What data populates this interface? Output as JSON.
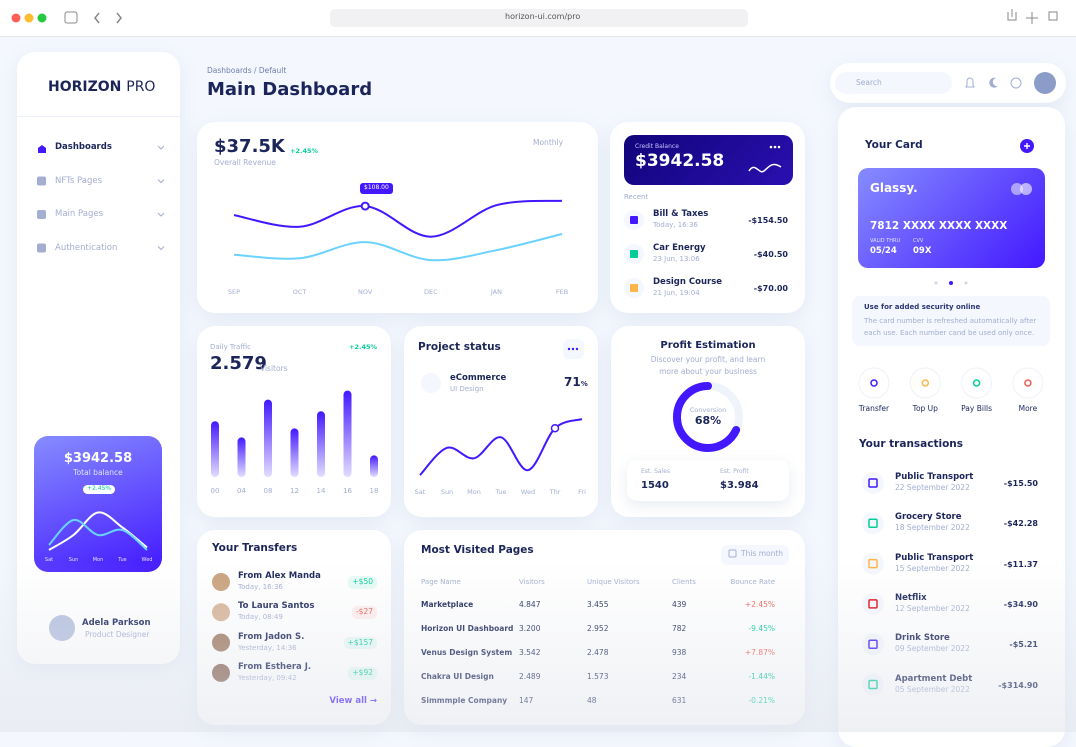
{
  "browser": {
    "url": "horizon-ui.com/pro"
  },
  "sidebar": {
    "brand": "HORIZON",
    "brand_suffix": "PRO",
    "nav": [
      "Dashboards",
      "NFTs Pages",
      "Main Pages",
      "Authentication"
    ],
    "balance_card": {
      "amount": "$3942.58",
      "label": "Total balance",
      "change": "+2.45%",
      "chart": {
        "type": "line",
        "categories": [
          "Sat",
          "Sun",
          "Mon",
          "Tue",
          "Wed"
        ],
        "series": [
          {
            "color": "#ffffff",
            "values": [
              10,
              40,
              85,
              55,
              15
            ]
          },
          {
            "color": "#6ad2ff",
            "values": [
              20,
              70,
              40,
              50,
              10
            ]
          }
        ],
        "ylim": [
          0,
          100
        ]
      }
    },
    "profile": {
      "name": "Adela Parkson",
      "role": "Product Designer"
    }
  },
  "header": {
    "breadcrumb": "Dashboards / Default",
    "title": "Main Dashboard",
    "search": "Search"
  },
  "revenue": {
    "amount": "$37.5K",
    "change": "+2.45%",
    "label": "Overall Revenue",
    "period": "Monthly",
    "tooltip": "$108.00",
    "chart": {
      "type": "line",
      "categories": [
        "SEP",
        "OCT",
        "NOV",
        "DEC",
        "JAN",
        "FEB"
      ],
      "series": [
        {
          "color": "#4318ff",
          "values": [
            61,
            48,
            71,
            37,
            72,
            77
          ]
        },
        {
          "color": "#6ad2ff",
          "values": [
            17,
            13,
            31,
            11,
            22,
            40
          ]
        }
      ],
      "ylim": [
        0,
        100
      ]
    }
  },
  "credit": {
    "label": "Credit Balance",
    "amount": "$3942.58",
    "recent": "Recent",
    "items": [
      {
        "name": "Bill & Taxes",
        "time": "Today, 16:36",
        "amount": "-$154.50"
      },
      {
        "name": "Car Energy",
        "time": "23 Jun, 13:06",
        "amount": "-$40.50"
      },
      {
        "name": "Design Course",
        "time": "21 Jun, 19:04",
        "amount": "-$70.00"
      }
    ]
  },
  "traffic": {
    "label": "Daily Traffic",
    "change": "+2.45%",
    "value": "2.579",
    "unit": "Visitors",
    "chart": {
      "type": "bar",
      "categories": [
        "00",
        "04",
        "08",
        "12",
        "14",
        "16",
        "18"
      ],
      "values": [
        62,
        44,
        86,
        54,
        73,
        96,
        24
      ],
      "ylim": [
        0,
        100
      ],
      "color": "#4318ff"
    }
  },
  "project": {
    "title": "Project status",
    "item": "eCommerce",
    "sub": "UI Design",
    "percent": "71",
    "percent_unit": "%",
    "chart": {
      "type": "line",
      "categories": [
        "Sat",
        "Sun",
        "Mon",
        "Tue",
        "Wed",
        "Thr",
        "Fri"
      ],
      "values": [
        7,
        46,
        31,
        61,
        14,
        74,
        87
      ],
      "ylim": [
        0,
        100
      ],
      "color": "#4318ff"
    }
  },
  "profit": {
    "title": "Profit Estimation",
    "text": "Discover your profit, and learn more about your business",
    "donut_label": "Conversion",
    "donut": {
      "value": 68,
      "label": "68%"
    },
    "sales_label": "Est. Sales",
    "sales": "1540",
    "profit_label": "Est. Profit",
    "profit": "$3.984"
  },
  "transfers": {
    "title": "Your Transfers",
    "items": [
      {
        "name": "From Alex Manda",
        "time": "Today, 16:36",
        "amount": "+$50"
      },
      {
        "name": "To Laura Santos",
        "time": "Today, 08:49",
        "amount": "-$27"
      },
      {
        "name": "From Jadon S.",
        "time": "Yesterday, 14:36",
        "amount": "+$157"
      },
      {
        "name": "From Esthera J.",
        "time": "Yesterday, 09:42",
        "amount": "+$92"
      }
    ],
    "view_all": "View all"
  },
  "pages": {
    "title": "Most Visited Pages",
    "period": "This month",
    "columns": [
      "Page Name",
      "Visitors",
      "Unique Visitors",
      "Clients",
      "Bounce Rate"
    ],
    "rows": [
      [
        "Marketplace",
        "4.847",
        "3.455",
        "439",
        "+2.45%"
      ],
      [
        "Horizon UI Dashboard",
        "3.200",
        "2.952",
        "782",
        "-9.45%"
      ],
      [
        "Venus Design System",
        "3.542",
        "2.478",
        "938",
        "+7.87%"
      ],
      [
        "Chakra UI Design",
        "2.489",
        "1.573",
        "234",
        "-1.44%"
      ],
      [
        "Simmmple Company",
        "147",
        "48",
        "631",
        "-0.21%"
      ]
    ]
  },
  "card": {
    "title": "Your Card",
    "brand": "Glassy.",
    "number": "7812 XXXX XXXX XXXX",
    "valid_label": "VALID THRU",
    "valid": "05/24",
    "cvv_label": "CVV",
    "cvv": "09X",
    "info_title": "Use for added security online",
    "info_text": "The card number is refreshed automatically after each use. Each number cand be used only once.",
    "actions": [
      "Transfer",
      "Top Up",
      "Pay Bills",
      "More"
    ],
    "transactions_title": "Your transactions",
    "transactions": [
      {
        "name": "Public Transport",
        "date": "22 September 2022",
        "amount": "-$15.50"
      },
      {
        "name": "Grocery Store",
        "date": "18 September 2022",
        "amount": "-$42.28"
      },
      {
        "name": "Public Transport",
        "date": "15 September 2022",
        "amount": "-$11.37"
      },
      {
        "name": "Netflix",
        "date": "12 September 2022",
        "amount": "-$34.90"
      },
      {
        "name": "Drink Store",
        "date": "09 September 2022",
        "amount": "-$5.21"
      },
      {
        "name": "Apartment Debt",
        "date": "05 September 2022",
        "amount": "-$314.90"
      }
    ]
  }
}
